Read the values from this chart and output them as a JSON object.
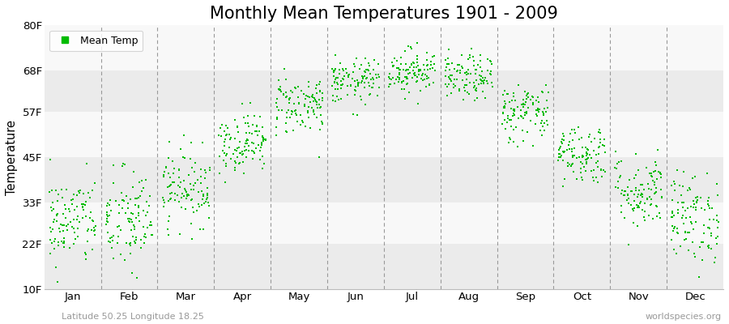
{
  "title": "Monthly Mean Temperatures 1901 - 2009",
  "ylabel": "Temperature",
  "ytick_labels": [
    "10F",
    "22F",
    "33F",
    "45F",
    "57F",
    "68F",
    "80F"
  ],
  "ytick_values": [
    10,
    22,
    33,
    45,
    57,
    68,
    80
  ],
  "ylim": [
    10,
    80
  ],
  "month_names": [
    "Jan",
    "Feb",
    "Mar",
    "Apr",
    "May",
    "Jun",
    "Jul",
    "Aug",
    "Sep",
    "Oct",
    "Nov",
    "Dec"
  ],
  "dot_color": "#00bb00",
  "bg_color": "#ffffff",
  "plot_bg": "#f5f5f5",
  "band_colors": [
    "#ebebeb",
    "#f8f8f8"
  ],
  "title_fontsize": 15,
  "legend_label": "Mean Temp",
  "bottom_left": "Latitude 50.25 Longitude 18.25",
  "bottom_right": "worldspecies.org",
  "monthly_means_F": [
    28,
    28,
    37,
    49,
    59,
    65,
    68,
    66,
    57,
    46,
    36,
    29
  ],
  "monthly_stds_F": [
    6,
    7,
    5,
    4,
    4,
    3,
    3,
    3,
    4,
    4,
    5,
    6
  ],
  "n_years": 109,
  "seed": 42
}
